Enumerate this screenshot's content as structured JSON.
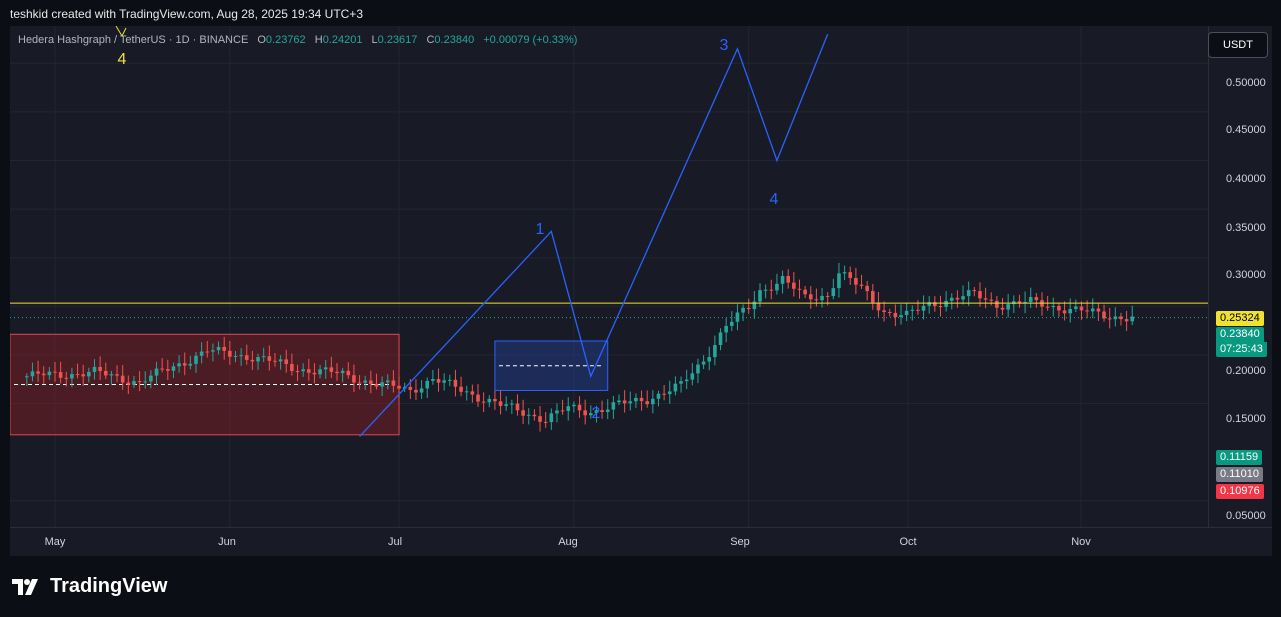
{
  "credit": "teshkid created with TradingView.com, Aug 28, 2025 19:34 UTC+3",
  "legend": {
    "symbol": "Hedera Hashgraph / TetherUS · 1D · BINANCE",
    "o_label": "O",
    "o": "0.23762",
    "h_label": "H",
    "h": "0.24201",
    "l_label": "L",
    "l": "0.23617",
    "c_label": "C",
    "c": "0.23840",
    "change": "+0.00079 (+0.33%)"
  },
  "currency": "USDT",
  "y_axis": [
    "0.50000",
    "0.45000",
    "0.40000",
    "0.35000",
    "0.30000",
    "0.20000",
    "0.15000",
    "0.05000"
  ],
  "x_axis": [
    "May",
    "Jun",
    "Jul",
    "Aug",
    "Sep",
    "Oct",
    "Nov"
  ],
  "price_tags": {
    "level": "0.25324",
    "last": "0.23840",
    "countdown": "07:25:43",
    "high": "0.11159",
    "mid": "0.11010",
    "low": "0.10976"
  },
  "wave_labels": {
    "w1": "1",
    "w2": "2",
    "w3": "3",
    "w4": "4",
    "w4_old": "4"
  },
  "colors": {
    "up": "#26a69a",
    "down": "#ef5350",
    "wave": "#2962ff",
    "level": "#f0e230",
    "bg": "#181b25"
  },
  "brand": "TradingView",
  "chart_data": {
    "type": "candlestick",
    "y_range": [
      0.03,
      0.53
    ],
    "price_levels": {
      "horizontal": 0.25324,
      "last": 0.2384
    },
    "zones": [
      {
        "kind": "demand-red",
        "from": "Apr 27",
        "to": "Jul 1",
        "top": 0.2212,
        "bottom": 0.1178,
        "mid": 0.1695
      },
      {
        "kind": "target-blue",
        "from": "Jul 18",
        "to": "Aug 7",
        "top": 0.2143,
        "bottom": 0.1634,
        "mid": 0.1888
      }
    ],
    "wave_path": [
      {
        "label": "",
        "date": "Jun 24",
        "price": 0.116
      },
      {
        "label": "1",
        "date": "Jul 28",
        "price": 0.327
      },
      {
        "label": "2",
        "date": "Aug 4",
        "price": 0.178
      },
      {
        "label": "3",
        "date": "Aug 30",
        "price": 0.515
      },
      {
        "label": "4",
        "date": "Sep 6",
        "price": 0.4
      },
      {
        "label": "",
        "date": "Sep 15",
        "price": 0.53
      }
    ],
    "candles": []
  }
}
